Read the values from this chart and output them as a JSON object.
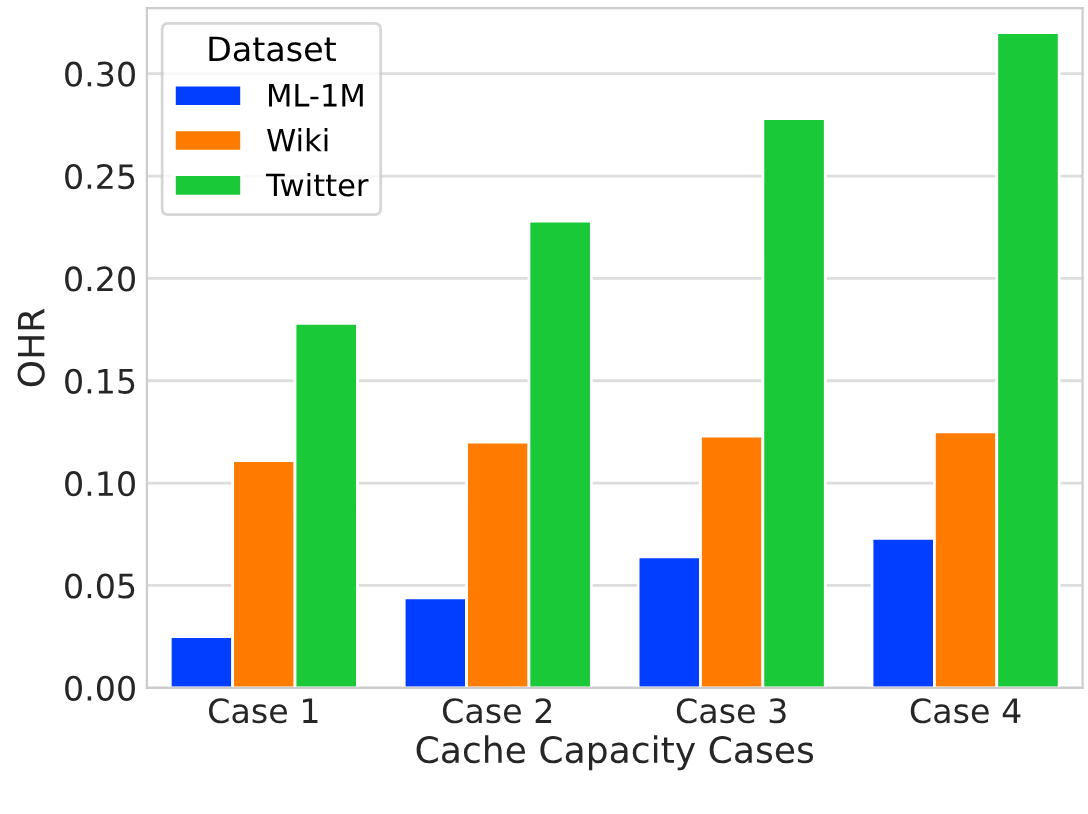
{
  "chart_data": {
    "type": "bar",
    "xlabel": "Cache Capacity Cases",
    "ylabel": "OHR",
    "legend_title": "Dataset",
    "categories": [
      "Case 1",
      "Case 2",
      "Case 3",
      "Case 4"
    ],
    "series": [
      {
        "name": "ML-1M",
        "color": "#023eff",
        "values": [
          0.025,
          0.044,
          0.064,
          0.073
        ]
      },
      {
        "name": "Wiki",
        "color": "#ff7c00",
        "values": [
          0.111,
          0.12,
          0.123,
          0.125
        ]
      },
      {
        "name": "Twitter",
        "color": "#1ac938",
        "values": [
          0.178,
          0.228,
          0.278,
          0.32
        ]
      }
    ],
    "ylim": [
      0,
      0.332
    ],
    "yticks": [
      {
        "value": 0,
        "label": "0.00"
      },
      {
        "value": 0.05,
        "label": "0.05"
      },
      {
        "value": 0.1,
        "label": "0.10"
      },
      {
        "value": 0.15,
        "label": "0.15"
      },
      {
        "value": 0.2,
        "label": "0.20"
      },
      {
        "value": 0.25,
        "label": "0.25"
      },
      {
        "value": 0.3,
        "label": "0.30"
      }
    ],
    "grid": "y",
    "legend": "top left"
  }
}
